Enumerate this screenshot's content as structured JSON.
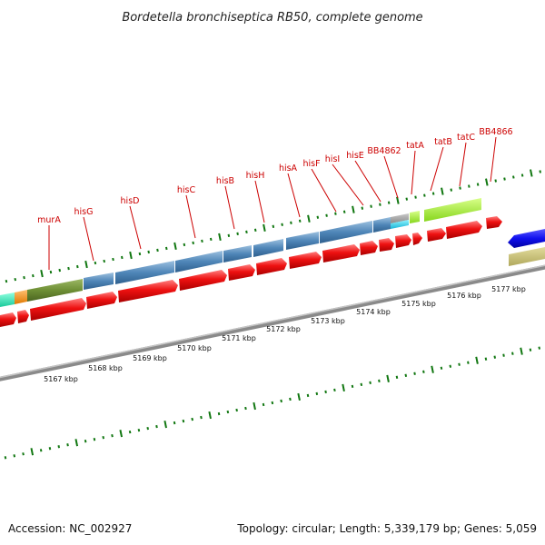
{
  "title": "Bordetella bronchiseptica RB50, complete genome",
  "footer": {
    "accession": "Accession: NC_002927",
    "summary": "Topology: circular; Length: 5,339,179 bp; Genes: 5,059"
  },
  "colors": {
    "label": "#cc0000",
    "tick": "#117711",
    "backbone": "#8a8a8a",
    "blue_gene": "#4f86b8",
    "red_gene": "#ee1111"
  },
  "gene_labels": [
    "murA",
    "hisG",
    "hisD",
    "hisC",
    "hisB",
    "hisH",
    "hisA",
    "hisF",
    "hisI",
    "hisE",
    "BB4862",
    "tatA",
    "tatB",
    "tatC",
    "BB4866"
  ],
  "kbp_labels": [
    "5167 kbp",
    "5168 kbp",
    "5169 kbp",
    "5170 kbp",
    "5171 kbp",
    "5172 kbp",
    "5173 kbp",
    "5174 kbp",
    "5175 kbp",
    "5176 kbp",
    "5177 kbp"
  ]
}
